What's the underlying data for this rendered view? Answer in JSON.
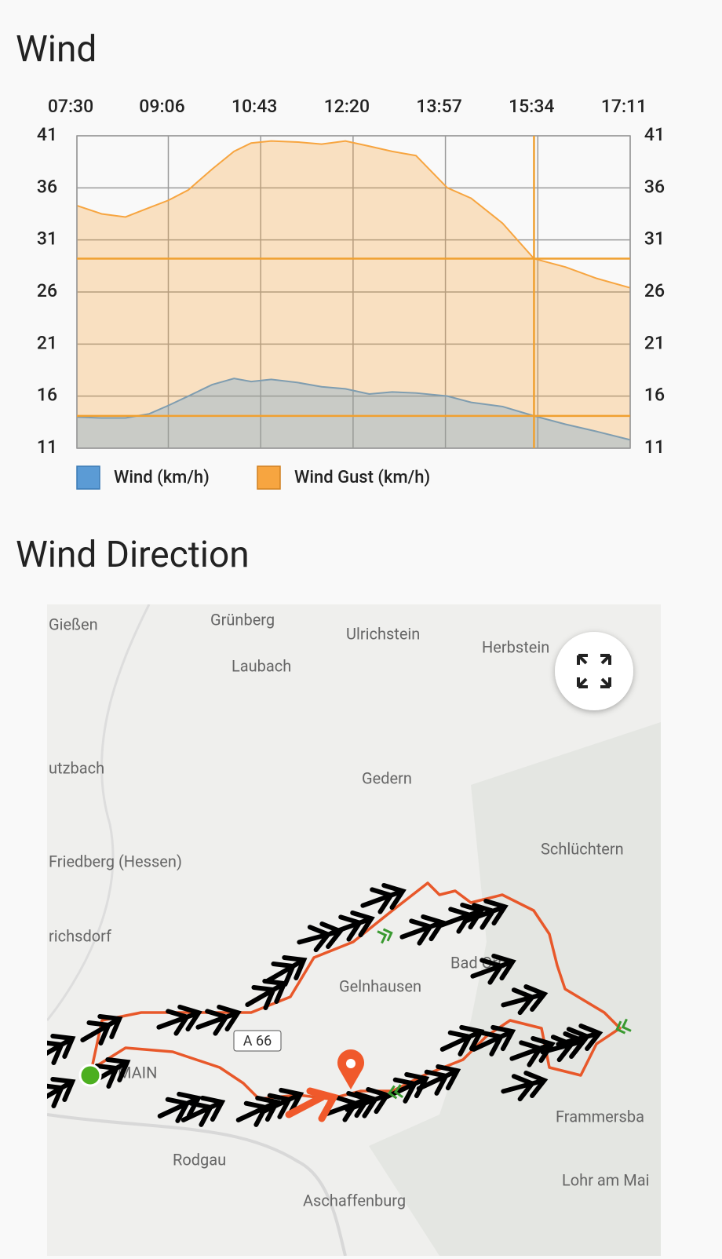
{
  "page": {
    "wind_heading": "Wind",
    "direction_heading": "Wind Direction"
  },
  "chart_data": {
    "type": "area",
    "x": [
      450,
      476,
      501,
      526,
      546,
      567,
      592,
      615,
      633,
      654,
      682,
      707,
      732,
      757,
      781,
      806,
      839,
      864,
      897,
      930,
      963,
      996,
      1031
    ],
    "xlim": [
      450,
      1031
    ],
    "xticks": [
      {
        "value": 450,
        "label": "07:30"
      },
      {
        "value": 546,
        "label": "09:06"
      },
      {
        "value": 643,
        "label": "10:43"
      },
      {
        "value": 740,
        "label": "12:20"
      },
      {
        "value": 837,
        "label": "13:57"
      },
      {
        "value": 934,
        "label": "15:34"
      },
      {
        "value": 1031,
        "label": "17:11"
      }
    ],
    "ylim": [
      11,
      41
    ],
    "yticks": [
      11,
      16,
      21,
      26,
      31,
      36,
      41
    ],
    "grid": true,
    "legend": "bottom",
    "series": [
      {
        "name": "Wind (km/h)",
        "color": "#5b9bd5",
        "values": [
          14.0,
          13.9,
          13.9,
          14.3,
          15.1,
          16.0,
          17.1,
          17.7,
          17.4,
          17.6,
          17.3,
          16.9,
          16.7,
          16.2,
          16.4,
          16.3,
          16.0,
          15.4,
          15.0,
          14.1,
          13.3,
          12.6,
          11.8
        ]
      },
      {
        "name": "Wind Gust (km/h)",
        "color": "#f7a540",
        "values": [
          34.3,
          33.5,
          33.2,
          34.1,
          34.8,
          35.8,
          37.8,
          39.5,
          40.3,
          40.5,
          40.4,
          40.2,
          40.5,
          40.0,
          39.5,
          39.1,
          36.0,
          35.0,
          32.6,
          29.2,
          28.4,
          27.3,
          26.4
        ]
      }
    ],
    "crosshair": {
      "x": 930,
      "values": [
        14.1,
        29.2
      ]
    }
  },
  "map": {
    "places": [
      "Gießen",
      "Grünberg",
      "Ulrichstein",
      "Herbstein",
      "Laubach",
      "utzbach",
      "Gedern",
      "Schlüchtern",
      "Friedberg (Hessen)",
      "richsdorf",
      "Bad Orb",
      "Gelnhausen",
      "Frammersba",
      "Rodgau",
      "Lohr am Mai",
      "Aschaffenburg",
      "MAIN"
    ],
    "road": "A 66"
  }
}
